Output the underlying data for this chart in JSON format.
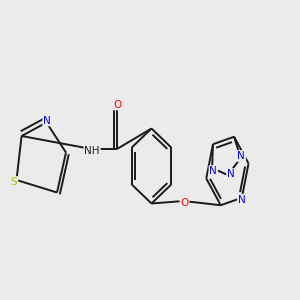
{
  "bg": "#ebebeb",
  "bc": "#1a1a1a",
  "nc": "#0000ff",
  "oc": "#ff0000",
  "sc": "#b8b800",
  "lw": 1.4,
  "fs": 7.5,
  "figsize": [
    3.0,
    3.0
  ],
  "dpi": 100,
  "xlim": [
    0,
    10
  ],
  "ylim": [
    2.5,
    8.5
  ]
}
